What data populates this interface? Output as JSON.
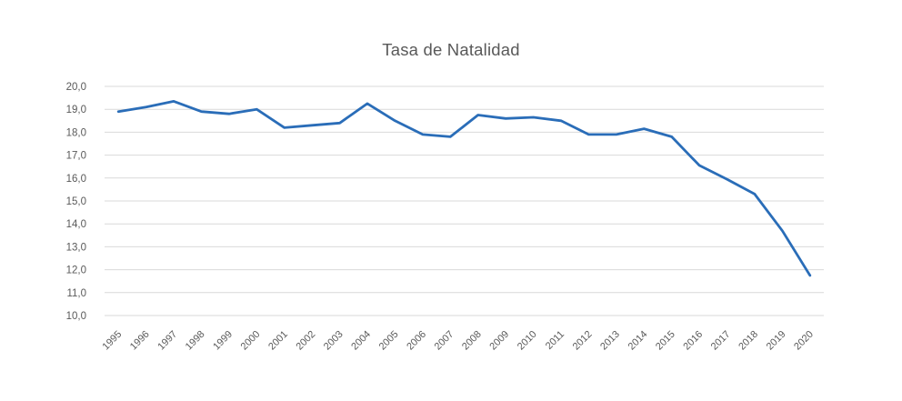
{
  "chart_data": {
    "type": "line",
    "title": "Tasa de Natalidad",
    "categories": [
      "1995",
      "1996",
      "1997",
      "1998",
      "1999",
      "2000",
      "2001",
      "2002",
      "2003",
      "2004",
      "2005",
      "2006",
      "2007",
      "2008",
      "2009",
      "2010",
      "2011",
      "2012",
      "2013",
      "2014",
      "2015",
      "2016",
      "2017",
      "2018",
      "2019",
      "2020"
    ],
    "values": [
      18.9,
      19.1,
      19.35,
      18.9,
      18.8,
      19.0,
      18.2,
      18.3,
      18.4,
      19.25,
      18.5,
      17.9,
      17.8,
      18.75,
      18.6,
      18.65,
      18.5,
      17.9,
      17.9,
      18.15,
      17.8,
      16.55,
      15.95,
      15.3,
      13.7,
      11.75
    ],
    "xlabel": "",
    "ylabel": "",
    "ylim": [
      10,
      20
    ],
    "y_tick_step": 1,
    "y_tick_values": [
      20,
      19,
      18,
      17,
      16,
      15,
      14,
      13,
      12,
      11,
      10
    ],
    "y_tick_labels": [
      "20,0",
      "19,0",
      "18,0",
      "17,0",
      "16,0",
      "15,0",
      "14,0",
      "13,0",
      "12,0",
      "11,0",
      "10,0"
    ],
    "x_label_rotation": -45,
    "grid": true,
    "legend": false,
    "colors": {
      "line": "#2a6db8",
      "grid": "#d9d9d9",
      "labels": "#595959",
      "title": "#595959",
      "background": "#ffffff"
    }
  }
}
